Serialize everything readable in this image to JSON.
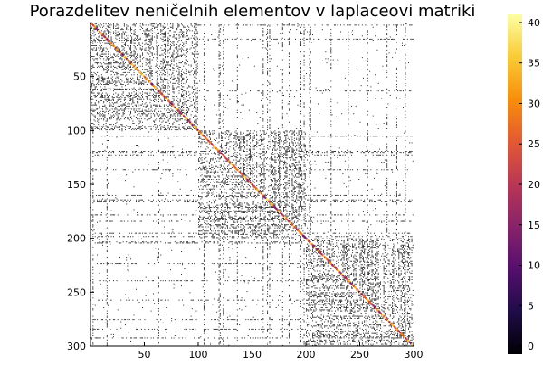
{
  "chart_data": {
    "type": "heatmap",
    "title": "Porazdelitev neničelnih elementov v laplaceovi matriki",
    "matrix_size": 300,
    "x_ticks": [
      "50",
      "100",
      "150",
      "200",
      "250",
      "300"
    ],
    "y_ticks": [
      "50",
      "100",
      "150",
      "200",
      "250",
      "300"
    ],
    "xlim": [
      0,
      300
    ],
    "ylim": [
      300,
      0
    ],
    "blocks": [
      {
        "rows": [
          1,
          100
        ],
        "cols": [
          1,
          100
        ],
        "density": 0.55
      },
      {
        "rows": [
          101,
          200
        ],
        "cols": [
          101,
          200
        ],
        "density": 0.55
      },
      {
        "rows": [
          201,
          300
        ],
        "cols": [
          201,
          300
        ],
        "density": 0.55
      }
    ],
    "off_block_density": 0.03,
    "diagonal_values": {
      "min": 10,
      "max": 40
    },
    "off_diagonal_value": -1,
    "colorbar": {
      "min": -1,
      "max": 41,
      "ticks": [
        "0",
        "5",
        "10",
        "15",
        "20",
        "25",
        "30",
        "35",
        "40"
      ],
      "colormap": "inferno",
      "colormap_stops": [
        "#000004",
        "#1f0c48",
        "#550f6d",
        "#88226a",
        "#ba3655",
        "#e35933",
        "#f98e09",
        "#f9cb35",
        "#fcffa4"
      ]
    },
    "grid": false,
    "legend": "none"
  }
}
